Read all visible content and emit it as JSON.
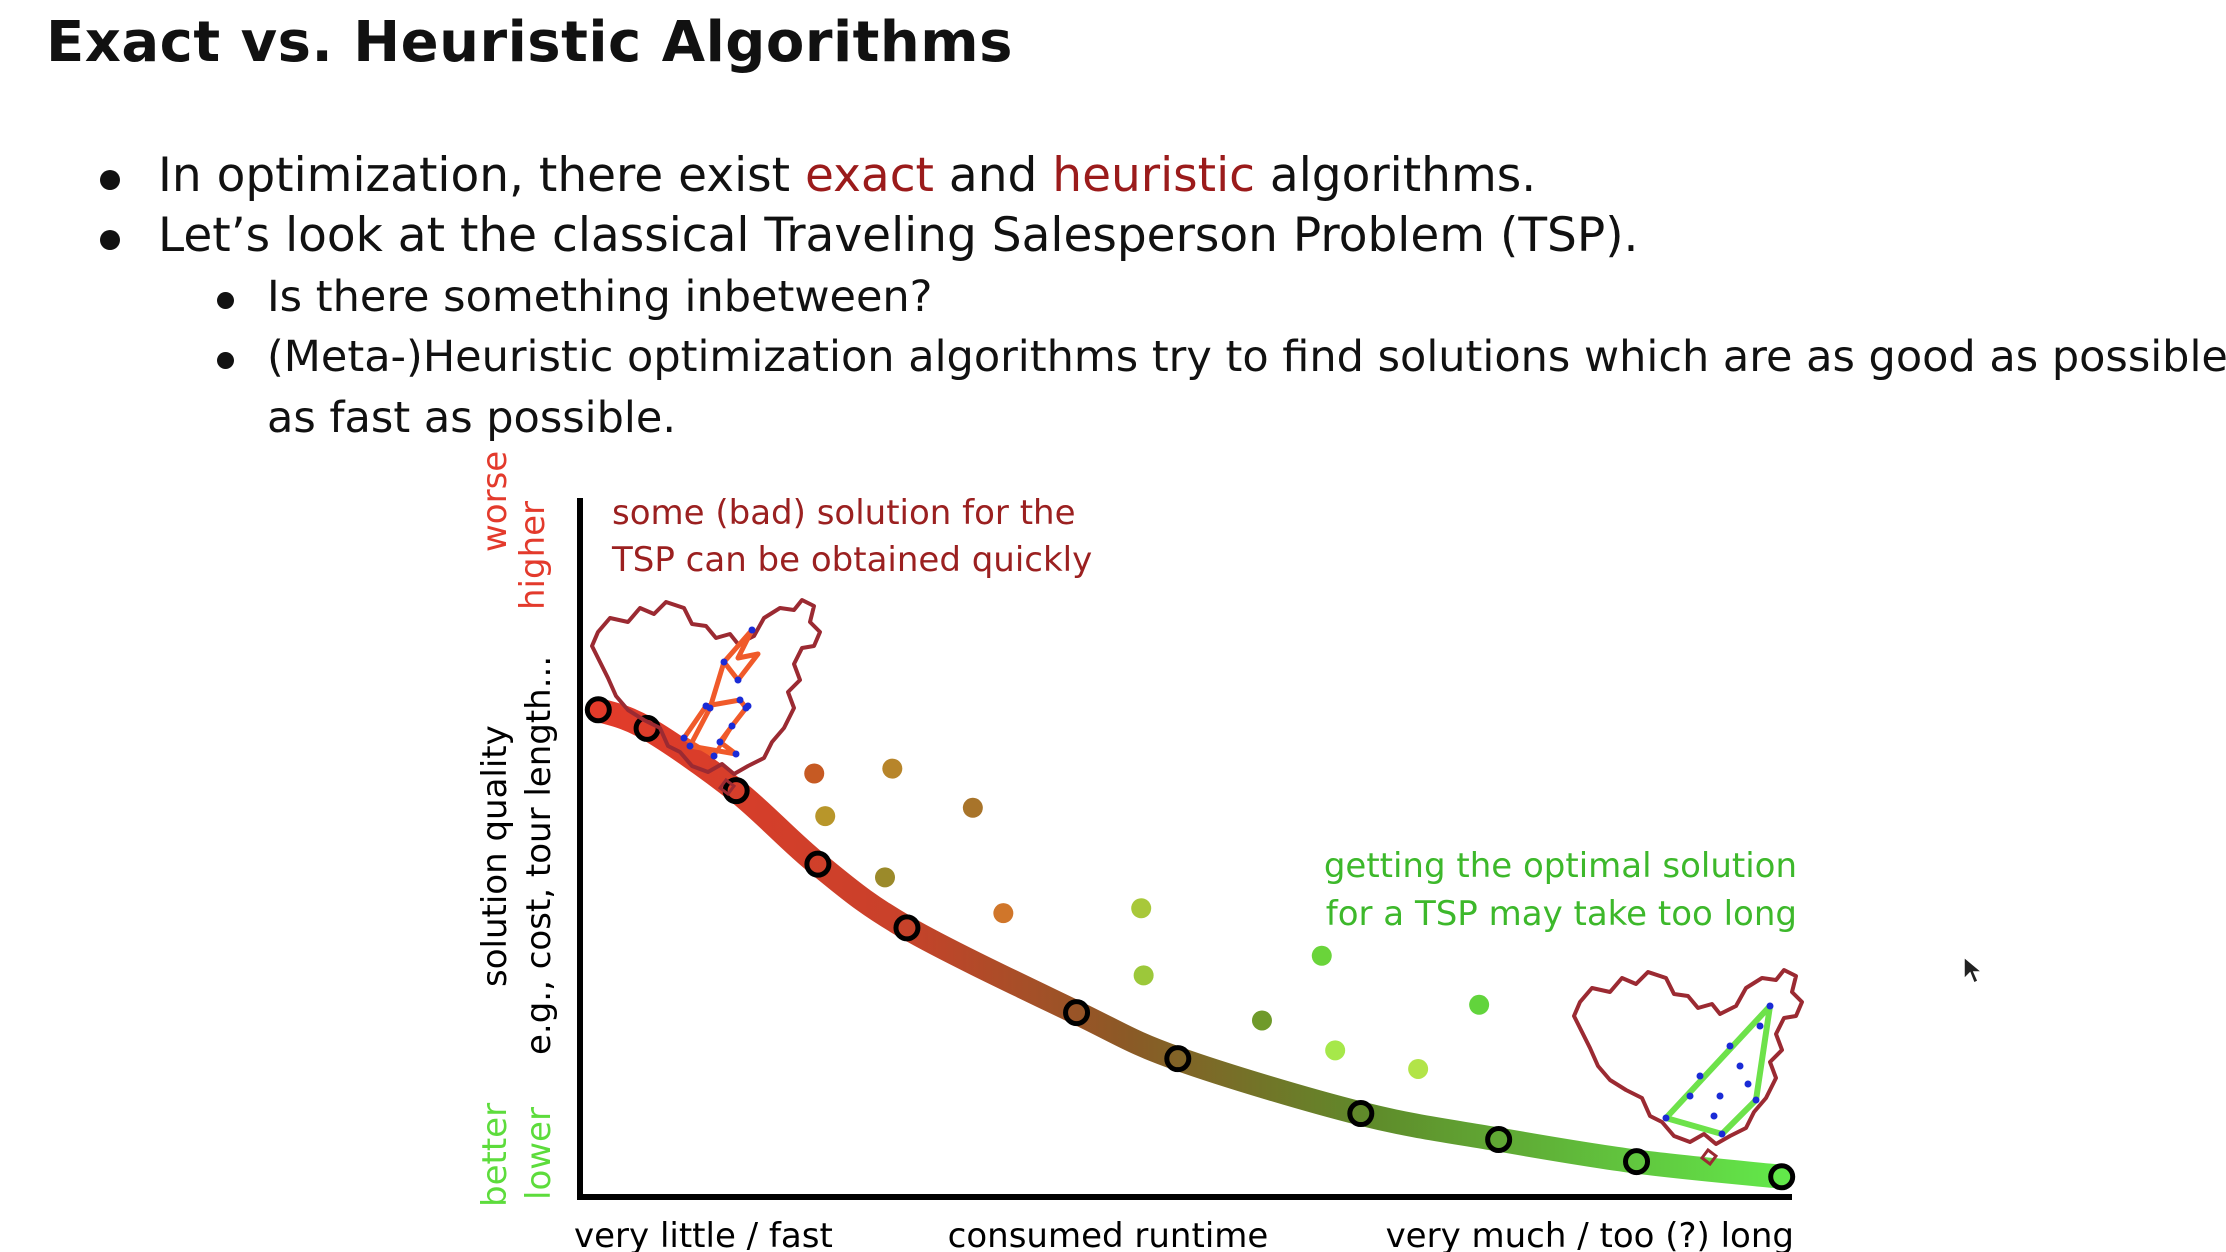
{
  "slide": {
    "title": "Exact vs. Heuristic Algorithms",
    "bullets": [
      {
        "pre": "In optimization, there exist ",
        "em1": "exact",
        "mid": " and ",
        "em2": "heuristic",
        "post": " algorithms."
      },
      {
        "text": "Let’s look at the classical Traveling Salesperson Problem (TSP)."
      }
    ],
    "subbullets": [
      "Is there something inbetween?",
      "(Meta-)Heuristic optimization algorithms try to find solutions which are as good as possible",
      "as fast as possible."
    ],
    "colors": {
      "accent": "#9b1b1b",
      "bad": "#e23b2a",
      "good": "#5ddc3c",
      "annotation_bad": "#9b2020",
      "annotation_good": "#3db82b"
    }
  },
  "figure": {
    "annotation_bad": [
      "some (bad) solution for the",
      "TSP can be obtained quickly"
    ],
    "annotation_good": [
      "getting the optimal solution",
      "for a TSP may take too long"
    ],
    "y_top_labels": [
      "worse",
      "higher"
    ],
    "y_bottom_labels": [
      "better",
      "lower"
    ],
    "y_label": [
      "solution quality",
      "e.g., cost, tour length..."
    ],
    "x_left": "very little / fast",
    "x_mid": "consumed runtime",
    "x_right": "very much / too (?) long",
    "icons": [
      "china-map-bad-tour-icon",
      "china-map-optimal-tour-icon",
      "mouse-cursor-icon"
    ]
  },
  "chart_data": {
    "type": "scatter",
    "xlim": [
      0,
      1
    ],
    "ylim": [
      0,
      1
    ],
    "curve_points": [
      {
        "x": 0.015,
        "y": 0.98
      },
      {
        "x": 0.055,
        "y": 0.942
      },
      {
        "x": 0.128,
        "y": 0.815
      },
      {
        "x": 0.195,
        "y": 0.665
      },
      {
        "x": 0.268,
        "y": 0.535
      },
      {
        "x": 0.407,
        "y": 0.362
      },
      {
        "x": 0.49,
        "y": 0.268
      },
      {
        "x": 0.64,
        "y": 0.156
      },
      {
        "x": 0.753,
        "y": 0.103
      },
      {
        "x": 0.866,
        "y": 0.058
      },
      {
        "x": 0.985,
        "y": 0.027
      }
    ],
    "heuristic_points": [
      {
        "x": 0.192,
        "y": 0.85,
        "color": "#c65a23"
      },
      {
        "x": 0.256,
        "y": 0.86,
        "color": "#b7852a"
      },
      {
        "x": 0.201,
        "y": 0.763,
        "color": "#b8962a"
      },
      {
        "x": 0.322,
        "y": 0.78,
        "color": "#a8742a"
      },
      {
        "x": 0.25,
        "y": 0.638,
        "color": "#9b8a2a"
      },
      {
        "x": 0.347,
        "y": 0.565,
        "color": "#d0762a"
      },
      {
        "x": 0.46,
        "y": 0.575,
        "color": "#a8c83a"
      },
      {
        "x": 0.462,
        "y": 0.438,
        "color": "#9cc83a"
      },
      {
        "x": 0.559,
        "y": 0.346,
        "color": "#6f9a2a"
      },
      {
        "x": 0.608,
        "y": 0.478,
        "color": "#6ad43a"
      },
      {
        "x": 0.619,
        "y": 0.285,
        "color": "#a6e84a"
      },
      {
        "x": 0.687,
        "y": 0.247,
        "color": "#b2e448"
      },
      {
        "x": 0.737,
        "y": 0.378,
        "color": "#62d43c"
      }
    ]
  }
}
